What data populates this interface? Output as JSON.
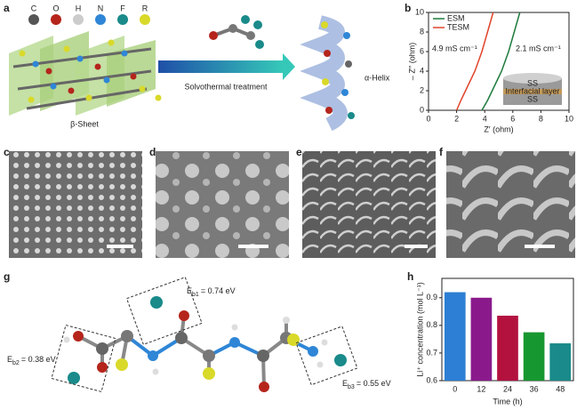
{
  "panels": {
    "letters": [
      "a",
      "b",
      "c",
      "d",
      "e",
      "f",
      "g",
      "h"
    ],
    "a": {
      "legend": [
        "C",
        "O",
        "H",
        "N",
        "F",
        "R"
      ],
      "arrow_label": "Solvothermal treatment",
      "left_label": "β-Sheet",
      "right_label": "α-Helix"
    },
    "g": {
      "energies": [
        {
          "symbol": "E",
          "subscript": "b1",
          "value": "= 0.74 eV"
        },
        {
          "symbol": "E",
          "subscript": "b2",
          "value": "= 0.38 eV"
        },
        {
          "symbol": "E",
          "subscript": "b3",
          "value": "= 0.55 eV"
        }
      ]
    }
  },
  "chart_data": [
    {
      "type": "line",
      "xlabel": "Z′ (ohm)",
      "ylabel": "– Z′′ (ohm)",
      "xlim": [
        0,
        10
      ],
      "ylim": [
        0,
        10
      ],
      "xticks": [
        0,
        2,
        4,
        6,
        8,
        10
      ],
      "yticks": [
        0,
        2,
        4,
        6,
        8,
        10
      ],
      "legend": "upper left",
      "series": [
        {
          "name": "ESM",
          "color": "#1e7b3c",
          "x": [
            3.8,
            4.2,
            4.7,
            5.2,
            5.7,
            6.1,
            6.5
          ],
          "values": [
            0,
            1,
            2.5,
            4,
            6,
            8,
            10
          ]
        },
        {
          "name": "TESM",
          "color": "#e0442a",
          "x": [
            2,
            2.3,
            2.8,
            3.3,
            3.8,
            4.2,
            4.6
          ],
          "values": [
            0,
            1,
            2.5,
            4,
            6,
            8,
            10
          ]
        }
      ],
      "annotations": [
        "4.9 mS cm⁻¹",
        "2.1 mS cm⁻¹"
      ],
      "inset_labels": [
        "SS",
        "Interfacial layer",
        "SS"
      ]
    },
    {
      "type": "bar",
      "xlabel": "Time (h)",
      "ylabel": "Li⁺ concentration (mol L⁻¹)",
      "categories": [
        "0",
        "12",
        "24",
        "36",
        "48"
      ],
      "values": [
        0.92,
        0.9,
        0.835,
        0.775,
        0.735
      ],
      "colors": [
        "#2c7fd4",
        "#8a1a8c",
        "#b3123f",
        "#17972f",
        "#1a8a8a"
      ],
      "ylim": [
        0.6,
        0.97
      ],
      "yticks": [
        0.6,
        0.7,
        0.8,
        0.9
      ]
    }
  ]
}
